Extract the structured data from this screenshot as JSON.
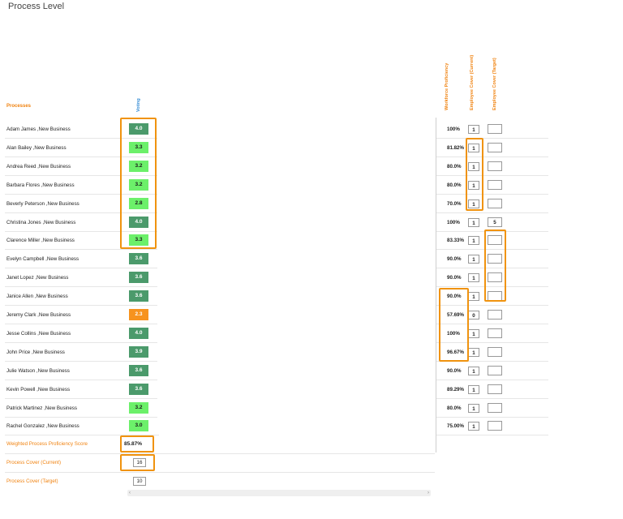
{
  "page": {
    "title": "Process Level"
  },
  "headers": {
    "processes": "Processes",
    "voting": "Voting",
    "workforce_proficiency": "Workforce Proficiency",
    "employee_cover_current": "Employee Cover (Current)",
    "employee_cover_target": "Employee Cover (Target)"
  },
  "colors": {
    "dark_green": "#4b9a6b",
    "light_green": "#6cf06a",
    "orange": "#f7931e",
    "accent": "#f0820f"
  },
  "rows": [
    {
      "label": "Adam James ,New Business",
      "score": "4.0",
      "level": "dark",
      "wp": "100%",
      "ecc": "1",
      "ect": ""
    },
    {
      "label": "Alan Bailey ,New Business",
      "score": "3.3",
      "level": "light",
      "wp": "81.82%",
      "ecc": "1",
      "ect": ""
    },
    {
      "label": "Andrea Reed ,New Business",
      "score": "3.2",
      "level": "light",
      "wp": "80.0%",
      "ecc": "1",
      "ect": ""
    },
    {
      "label": "Barbara Flores ,New Business",
      "score": "3.2",
      "level": "light",
      "wp": "80.0%",
      "ecc": "1",
      "ect": ""
    },
    {
      "label": "Beverly Peterson ,New Business",
      "score": "2.8",
      "level": "light",
      "wp": "70.0%",
      "ecc": "1",
      "ect": ""
    },
    {
      "label": "Christina Jones ,New Business",
      "score": "4.0",
      "level": "dark",
      "wp": "100%",
      "ecc": "1",
      "ect": "5"
    },
    {
      "label": "Clarence Miller ,New Business",
      "score": "3.3",
      "level": "light",
      "wp": "83.33%",
      "ecc": "1",
      "ect": ""
    },
    {
      "label": "Evelyn Campbell ,New Business",
      "score": "3.6",
      "level": "dark",
      "wp": "90.0%",
      "ecc": "1",
      "ect": ""
    },
    {
      "label": "Janet Lopez ,New Business",
      "score": "3.6",
      "level": "dark",
      "wp": "90.0%",
      "ecc": "1",
      "ect": ""
    },
    {
      "label": "Janice Allen ,New Business",
      "score": "3.6",
      "level": "dark",
      "wp": "90.0%",
      "ecc": "1",
      "ect": ""
    },
    {
      "label": "Jeremy Clark ,New Business",
      "score": "2.3",
      "level": "orange",
      "wp": "57.69%",
      "ecc": "0",
      "ect": ""
    },
    {
      "label": "Jesse Collins ,New Business",
      "score": "4.0",
      "level": "dark",
      "wp": "100%",
      "ecc": "1",
      "ect": ""
    },
    {
      "label": "John Price ,New Business",
      "score": "3.9",
      "level": "dark",
      "wp": "96.67%",
      "ecc": "1",
      "ect": ""
    },
    {
      "label": "Julie Watson ,New Business",
      "score": "3.6",
      "level": "dark",
      "wp": "90.0%",
      "ecc": "1",
      "ect": ""
    },
    {
      "label": "Kevin Powell ,New Business",
      "score": "3.6",
      "level": "dark",
      "wp": "89.29%",
      "ecc": "1",
      "ect": ""
    },
    {
      "label": "Patrick Martinez ,New Business",
      "score": "3.2",
      "level": "light",
      "wp": "80.0%",
      "ecc": "1",
      "ect": ""
    },
    {
      "label": "Rachel Gonzalez ,New Business",
      "score": "3.0",
      "level": "light",
      "wp": "75.00%",
      "ecc": "1",
      "ect": ""
    }
  ],
  "footer": {
    "weighted_label": "Weighted Process Proficiency Score",
    "weighted_value": "85.87%",
    "cover_current_label": "Process Cover (Current)",
    "cover_current_value": "16",
    "cover_target_label": "Process Cover (Target)",
    "cover_target_value": "10"
  },
  "scrollbar": {
    "left_arrow": "‹",
    "right_arrow": "›"
  }
}
